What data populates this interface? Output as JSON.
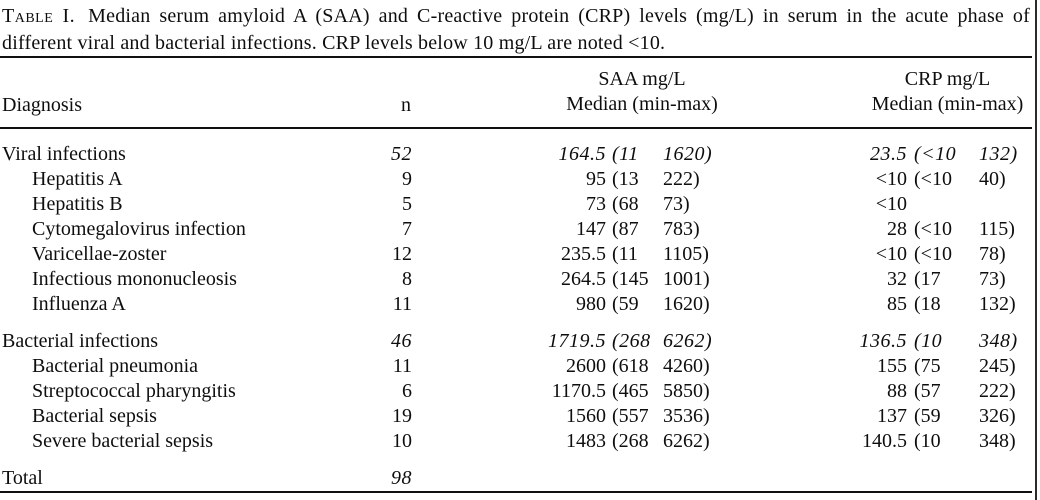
{
  "caption": {
    "label": "Table I.",
    "text": "Median serum amyloid A (SAA) and C-reactive protein (CRP) levels (mg/L) in serum in the acute phase of different viral and bacterial infections. CRP levels below 10 mg/L are noted <10."
  },
  "header": {
    "diagnosis": "Diagnosis",
    "n": "n",
    "saa_unit": "SAA mg/L",
    "saa_measure": "Median (min-max)",
    "crp_unit": "CRP mg/L",
    "crp_measure": "Median (min-max)"
  },
  "rows": [
    {
      "label": "Viral infections",
      "indent": false,
      "italic_values": true,
      "gap_before": false,
      "n": "52",
      "saa_med": "164.5",
      "saa_min": "11",
      "saa_max": "1620",
      "crp_med": "23.5",
      "crp_min": "<10",
      "crp_max": "132"
    },
    {
      "label": "Hepatitis A",
      "indent": true,
      "italic_values": false,
      "gap_before": false,
      "n": "9",
      "saa_med": "95",
      "saa_min": "13",
      "saa_max": "222",
      "crp_med": "<10",
      "crp_min": "<10",
      "crp_max": "40"
    },
    {
      "label": "Hepatitis B",
      "indent": true,
      "italic_values": false,
      "gap_before": false,
      "n": "5",
      "saa_med": "73",
      "saa_min": "68",
      "saa_max": "73",
      "crp_med": "<10",
      "crp_min": "",
      "crp_max": ""
    },
    {
      "label": "Cytomegalovirus infection",
      "indent": true,
      "italic_values": false,
      "gap_before": false,
      "n": "7",
      "saa_med": "147",
      "saa_min": "87",
      "saa_max": "783",
      "crp_med": "28",
      "crp_min": "<10",
      "crp_max": "115"
    },
    {
      "label": "Varicellae-zoster",
      "indent": true,
      "italic_values": false,
      "gap_before": false,
      "n": "12",
      "saa_med": "235.5",
      "saa_min": "11",
      "saa_max": "1105",
      "crp_med": "<10",
      "crp_min": "<10",
      "crp_max": "78"
    },
    {
      "label": "Infectious mononucleosis",
      "indent": true,
      "italic_values": false,
      "gap_before": false,
      "n": "8",
      "saa_med": "264.5",
      "saa_min": "145",
      "saa_max": "1001",
      "crp_med": "32",
      "crp_min": "17",
      "crp_max": "73"
    },
    {
      "label": "Influenza A",
      "indent": true,
      "italic_values": false,
      "gap_before": false,
      "n": "11",
      "saa_med": "980",
      "saa_min": "59",
      "saa_max": "1620",
      "crp_med": "85",
      "crp_min": "18",
      "crp_max": "132"
    },
    {
      "label": "Bacterial infections",
      "indent": false,
      "italic_values": true,
      "gap_before": true,
      "n": "46",
      "saa_med": "1719.5",
      "saa_min": "268",
      "saa_max": "6262",
      "crp_med": "136.5",
      "crp_min": "10",
      "crp_max": "348"
    },
    {
      "label": "Bacterial pneumonia",
      "indent": true,
      "italic_values": false,
      "gap_before": false,
      "n": "11",
      "saa_med": "2600",
      "saa_min": "618",
      "saa_max": "4260",
      "crp_med": "155",
      "crp_min": "75",
      "crp_max": "245"
    },
    {
      "label": "Streptococcal pharyngitis",
      "indent": true,
      "italic_values": false,
      "gap_before": false,
      "n": "6",
      "saa_med": "1170.5",
      "saa_min": "465",
      "saa_max": "5850",
      "crp_med": "88",
      "crp_min": "57",
      "crp_max": "222"
    },
    {
      "label": "Bacterial sepsis",
      "indent": true,
      "italic_values": false,
      "gap_before": false,
      "n": "19",
      "saa_med": "1560",
      "saa_min": "557",
      "saa_max": "3536",
      "crp_med": "137",
      "crp_min": "59",
      "crp_max": "326"
    },
    {
      "label": "Severe bacterial sepsis",
      "indent": true,
      "italic_values": false,
      "gap_before": false,
      "n": "10",
      "saa_med": "1483",
      "saa_min": "268",
      "saa_max": "6262",
      "crp_med": "140.5",
      "crp_min": "10",
      "crp_max": "348"
    },
    {
      "label": "Total",
      "indent": false,
      "italic_values": true,
      "gap_before": true,
      "n": "98",
      "saa_med": "",
      "saa_min": "",
      "saa_max": "",
      "crp_med": "",
      "crp_min": "",
      "crp_max": ""
    }
  ]
}
